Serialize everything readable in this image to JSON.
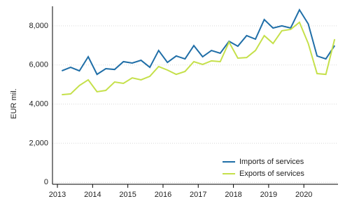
{
  "chart_data": {
    "type": "line",
    "ylabel": "EUR mil.",
    "x": [
      2013.125,
      2013.375,
      2013.625,
      2013.875,
      2014.125,
      2014.375,
      2014.625,
      2014.875,
      2015.125,
      2015.375,
      2015.625,
      2015.875,
      2016.125,
      2016.375,
      2016.625,
      2016.875,
      2017.125,
      2017.375,
      2017.625,
      2017.875,
      2018.125,
      2018.375,
      2018.625,
      2018.875,
      2019.125,
      2019.375,
      2019.625,
      2019.875,
      2020.125,
      2020.375,
      2020.625,
      2020.875
    ],
    "series": [
      {
        "name": "Imports of services",
        "color": "#1f6ea7",
        "values": [
          5700,
          5880,
          5700,
          6420,
          5520,
          5810,
          5770,
          6170,
          6100,
          6240,
          5880,
          6740,
          6130,
          6460,
          6310,
          6990,
          6420,
          6740,
          6600,
          7210,
          6960,
          7500,
          7320,
          8320,
          7890,
          8000,
          7890,
          8820,
          8100,
          6460,
          6310,
          6990
        ]
      },
      {
        "name": "Exports of services",
        "color": "#c5e04a",
        "values": [
          4480,
          4520,
          4950,
          5240,
          4630,
          4700,
          5130,
          5060,
          5340,
          5240,
          5420,
          5920,
          5740,
          5520,
          5670,
          6170,
          6030,
          6210,
          6170,
          7170,
          6350,
          6380,
          6740,
          7500,
          7100,
          7750,
          7820,
          8180,
          7100,
          5560,
          5520,
          7320
        ]
      }
    ],
    "xlim": [
      2012.86,
      2020.97
    ],
    "xticks": [
      2013,
      2014,
      2015,
      2016,
      2017,
      2018,
      2019,
      2020
    ],
    "ylim": [
      -100,
      9000
    ],
    "yticks": [
      0,
      {
        "value": 2000,
        "label": "2,000"
      },
      {
        "value": 4000,
        "label": "4,000"
      },
      {
        "value": 6000,
        "label": "6,000"
      },
      {
        "value": 8000,
        "label": "8,000"
      }
    ],
    "grid": true,
    "legend": "lower right"
  }
}
